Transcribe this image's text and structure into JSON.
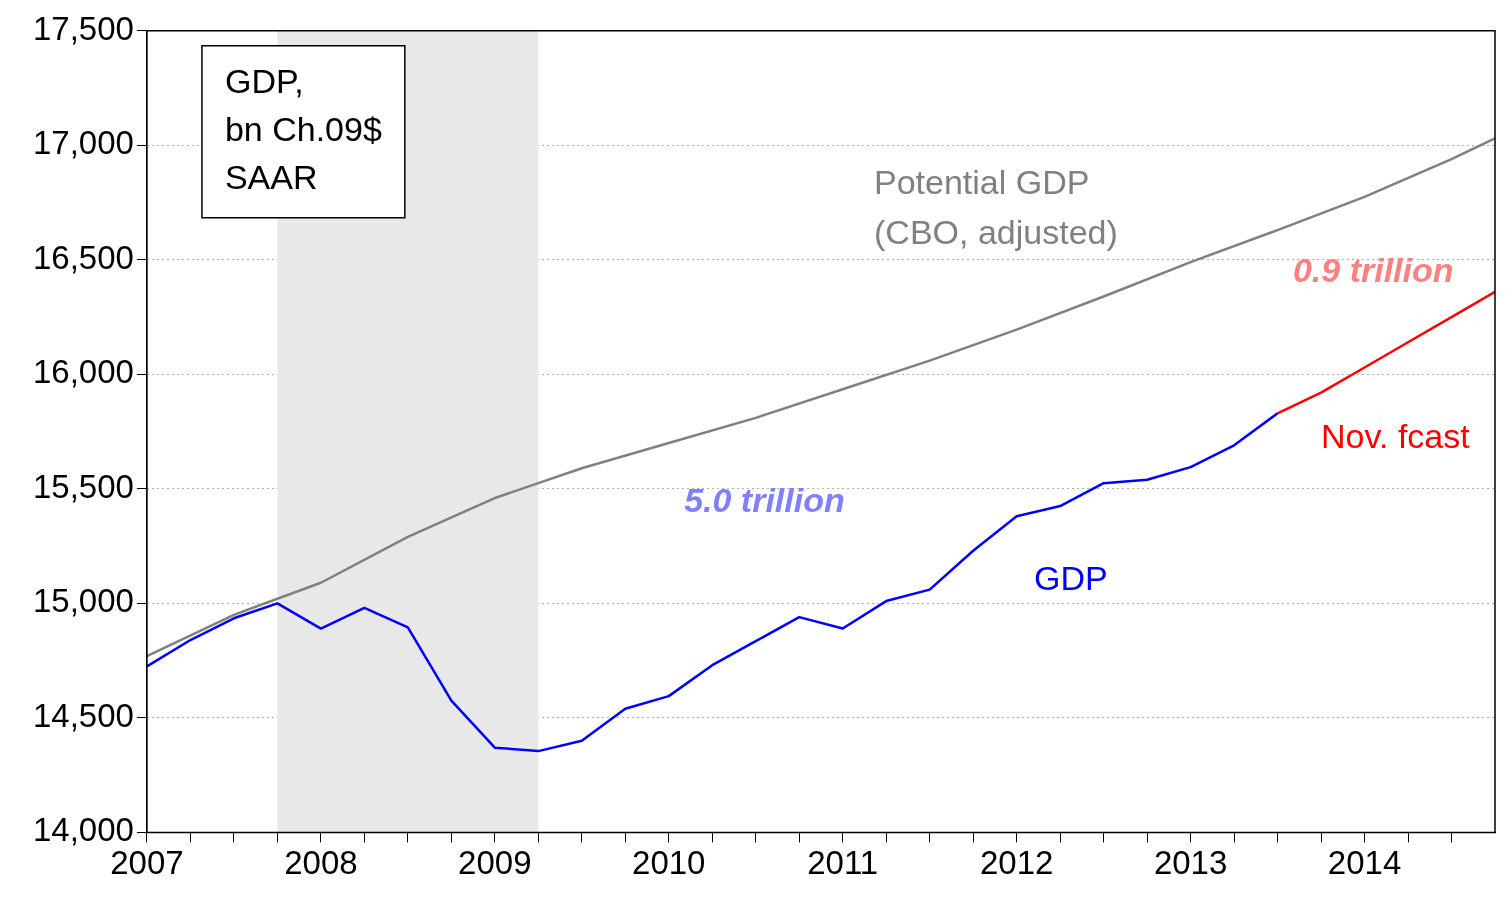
{
  "chart_data": {
    "type": "line",
    "series": [
      {
        "name": "Potential GDP\n(CBO, adjusted)",
        "color": "#808080",
        "x": [
          2007,
          2007.5,
          2008,
          2008.5,
          2009,
          2009.25,
          2009.5,
          2010,
          2010.5,
          2011,
          2011.5,
          2012,
          2012.5,
          2013,
          2013.5,
          2014,
          2014.5,
          2014.75
        ],
        "values": [
          14770,
          14950,
          15090,
          15290,
          15460,
          15525,
          15590,
          15700,
          15810,
          15935,
          16060,
          16195,
          16340,
          16490,
          16630,
          16775,
          16940,
          17030
        ]
      },
      {
        "name": "GDP",
        "color": "#0000ff",
        "x": [
          2007,
          2007.25,
          2007.5,
          2007.75,
          2008,
          2008.25,
          2008.5,
          2008.75,
          2009,
          2009.25,
          2009.5,
          2009.75,
          2010,
          2010.25,
          2010.5,
          2010.75,
          2011,
          2011.25,
          2011.5,
          2011.75,
          2012,
          2012.25,
          2012.5,
          2012.75,
          2013,
          2013.25,
          2013.5
        ],
        "values": [
          14725,
          14840,
          14935,
          15000,
          14890,
          14980,
          14895,
          14575,
          14370,
          14355,
          14400,
          14540,
          14595,
          14730,
          14835,
          14940,
          14890,
          15010,
          15060,
          15230,
          15380,
          15425,
          15525,
          15540,
          15595,
          15690,
          15830
        ]
      },
      {
        "name": "Nov. fcast",
        "color": "#ff0000",
        "x": [
          2013.5,
          2013.75,
          2014,
          2014.25,
          2014.5,
          2014.75
        ],
        "values": [
          15830,
          15920,
          16030,
          16140,
          16250,
          16360
        ]
      }
    ],
    "xlim": [
      2007,
      2014.75
    ],
    "xticks": [
      2007,
      {
        "value": 2007.25,
        "label": null
      },
      {
        "value": 2007.5,
        "label": null
      },
      {
        "value": 2007.75,
        "label": null
      },
      2008,
      {
        "value": 2008.25,
        "label": null
      },
      {
        "value": 2008.5,
        "label": null
      },
      {
        "value": 2008.75,
        "label": null
      },
      2009,
      {
        "value": 2009.25,
        "label": null
      },
      {
        "value": 2009.5,
        "label": null
      },
      {
        "value": 2009.75,
        "label": null
      },
      2010,
      {
        "value": 2010.25,
        "label": null
      },
      {
        "value": 2010.5,
        "label": null
      },
      {
        "value": 2010.75,
        "label": null
      },
      2011,
      {
        "value": 2011.25,
        "label": null
      },
      {
        "value": 2011.5,
        "label": null
      },
      {
        "value": 2011.75,
        "label": null
      },
      2012,
      {
        "value": 2012.25,
        "label": null
      },
      {
        "value": 2012.5,
        "label": null
      },
      {
        "value": 2012.75,
        "label": null
      },
      2013,
      {
        "value": 2013.25,
        "label": null
      },
      {
        "value": 2013.5,
        "label": null
      },
      {
        "value": 2013.75,
        "label": null
      },
      2014,
      {
        "value": 2014.25,
        "label": null
      },
      {
        "value": 2014.5,
        "label": null
      }
    ],
    "ylim": [
      14000,
      17500
    ],
    "yticks": [
      {
        "value": 14000,
        "label": "14,000"
      },
      {
        "value": 14500,
        "label": "14,500"
      },
      {
        "value": 15000,
        "label": "15,000"
      },
      {
        "value": 15500,
        "label": "15,500"
      },
      {
        "value": 16000,
        "label": "16,000"
      },
      {
        "value": 16500,
        "label": "16,500"
      },
      {
        "value": 17000,
        "label": "17,000"
      },
      {
        "value": 17500,
        "label": "17,500"
      }
    ],
    "bands": [
      {
        "axis": "x",
        "from": 2007.75,
        "to": 2009.25,
        "color": "#e8e8e8"
      }
    ],
    "annotations": [
      "GDP,\nbn Ch.09$\nSAAR",
      "5.0 trillion",
      "0.9 trillion"
    ],
    "grid": "y",
    "legend": false,
    "marker": "none",
    "line_style": "solid"
  }
}
